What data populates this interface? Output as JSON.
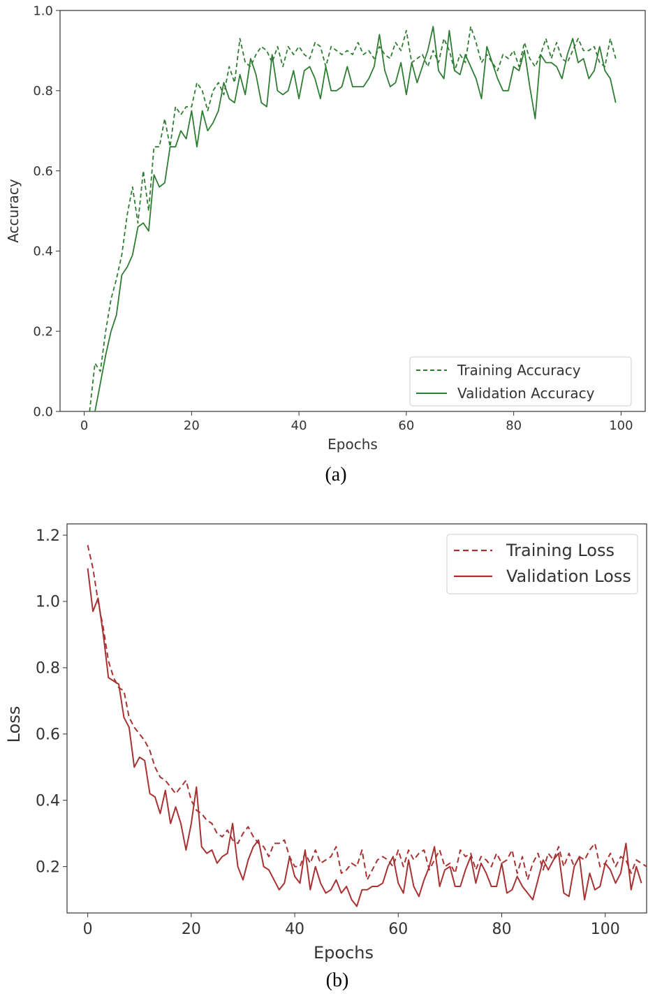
{
  "chart_data": [
    {
      "type": "line",
      "caption": "(a)",
      "xlabel": "Epochs",
      "ylabel": "Accuracy",
      "xlim": [
        -4.5,
        104.5
      ],
      "ylim": [
        0.0,
        1.0
      ],
      "xticks": [
        "0",
        "20",
        "40",
        "60",
        "80",
        "100"
      ],
      "yticks": [
        "0.0",
        "0.2",
        "0.4",
        "0.6",
        "0.8",
        "1.0"
      ],
      "grid": false,
      "legend_position": "lower-right",
      "color": "#2e7d32",
      "series": [
        {
          "name": "Training Accuracy",
          "style": "dashed",
          "x_start": 1,
          "values": [
            0.0,
            0.12,
            0.1,
            0.2,
            0.28,
            0.33,
            0.39,
            0.49,
            0.56,
            0.47,
            0.6,
            0.5,
            0.66,
            0.66,
            0.73,
            0.66,
            0.76,
            0.74,
            0.76,
            0.76,
            0.82,
            0.8,
            0.75,
            0.8,
            0.82,
            0.79,
            0.86,
            0.82,
            0.93,
            0.87,
            0.86,
            0.89,
            0.91,
            0.9,
            0.87,
            0.91,
            0.86,
            0.91,
            0.89,
            0.91,
            0.89,
            0.88,
            0.92,
            0.91,
            0.86,
            0.91,
            0.9,
            0.89,
            0.9,
            0.89,
            0.92,
            0.89,
            0.9,
            0.88,
            0.91,
            0.89,
            0.88,
            0.92,
            0.9,
            0.95,
            0.87,
            0.88,
            0.89,
            0.86,
            0.9,
            0.87,
            0.93,
            0.9,
            0.85,
            0.89,
            0.87,
            0.96,
            0.92,
            0.87,
            0.89,
            0.87,
            0.85,
            0.89,
            0.88,
            0.9,
            0.86,
            0.92,
            0.88,
            0.86,
            0.89,
            0.93,
            0.88,
            0.92,
            0.88,
            0.87,
            0.9,
            0.93,
            0.9,
            0.9,
            0.91,
            0.87,
            0.86,
            0.93,
            0.88
          ]
        },
        {
          "name": "Validation Accuracy",
          "style": "solid",
          "x_start": 2,
          "values": [
            0.0,
            0.07,
            0.14,
            0.2,
            0.24,
            0.34,
            0.36,
            0.39,
            0.46,
            0.47,
            0.45,
            0.59,
            0.56,
            0.57,
            0.66,
            0.66,
            0.7,
            0.68,
            0.75,
            0.66,
            0.75,
            0.7,
            0.72,
            0.75,
            0.82,
            0.78,
            0.77,
            0.84,
            0.79,
            0.88,
            0.84,
            0.77,
            0.76,
            0.89,
            0.8,
            0.79,
            0.8,
            0.85,
            0.78,
            0.85,
            0.86,
            0.83,
            0.78,
            0.86,
            0.8,
            0.8,
            0.81,
            0.86,
            0.81,
            0.81,
            0.81,
            0.83,
            0.86,
            0.94,
            0.85,
            0.81,
            0.82,
            0.87,
            0.79,
            0.87,
            0.82,
            0.86,
            0.9,
            0.96,
            0.85,
            0.83,
            0.95,
            0.85,
            0.84,
            0.89,
            0.86,
            0.83,
            0.78,
            0.91,
            0.87,
            0.83,
            0.8,
            0.8,
            0.86,
            0.85,
            0.9,
            0.81,
            0.73,
            0.89,
            0.87,
            0.87,
            0.86,
            0.83,
            0.89,
            0.93,
            0.87,
            0.88,
            0.83,
            0.85,
            0.91,
            0.85,
            0.83,
            0.77
          ]
        }
      ]
    },
    {
      "type": "line",
      "caption": "(b)",
      "xlabel": "Epochs",
      "ylabel": "Loss",
      "xlim": [
        -4,
        108
      ],
      "ylim": [
        0.06,
        1.234
      ],
      "xticks": [
        "0",
        "20",
        "40",
        "60",
        "80",
        "100"
      ],
      "yticks": [
        "0.2",
        "0.4",
        "0.6",
        "0.8",
        "1.0",
        "1.2"
      ],
      "grid": false,
      "legend_position": "upper-right",
      "color": "#a83232",
      "series": [
        {
          "name": "Training Loss",
          "style": "dashed",
          "x_start": 0,
          "values": [
            1.17,
            1.1,
            1.0,
            0.92,
            0.82,
            0.77,
            0.74,
            0.73,
            0.65,
            0.62,
            0.6,
            0.58,
            0.55,
            0.5,
            0.47,
            0.46,
            0.44,
            0.42,
            0.44,
            0.46,
            0.4,
            0.37,
            0.36,
            0.34,
            0.33,
            0.3,
            0.29,
            0.31,
            0.28,
            0.27,
            0.3,
            0.32,
            0.29,
            0.27,
            0.26,
            0.23,
            0.27,
            0.27,
            0.28,
            0.23,
            0.2,
            0.2,
            0.24,
            0.21,
            0.25,
            0.21,
            0.22,
            0.23,
            0.26,
            0.18,
            0.19,
            0.21,
            0.2,
            0.25,
            0.16,
            0.19,
            0.22,
            0.23,
            0.22,
            0.2,
            0.25,
            0.2,
            0.25,
            0.22,
            0.24,
            0.25,
            0.19,
            0.22,
            0.25,
            0.2,
            0.21,
            0.18,
            0.25,
            0.23,
            0.24,
            0.19,
            0.23,
            0.22,
            0.2,
            0.24,
            0.21,
            0.22,
            0.25,
            0.18,
            0.23,
            0.16,
            0.21,
            0.24,
            0.19,
            0.24,
            0.22,
            0.26,
            0.2,
            0.24,
            0.2,
            0.23,
            0.22,
            0.25,
            0.27,
            0.2,
            0.21,
            0.24,
            0.2,
            0.23,
            0.22,
            0.18,
            0.22,
            0.21,
            0.2
          ]
        },
        {
          "name": "Validation Loss",
          "style": "solid",
          "x_start": 0,
          "values": [
            1.1,
            0.97,
            1.01,
            0.9,
            0.77,
            0.76,
            0.75,
            0.65,
            0.62,
            0.5,
            0.53,
            0.52,
            0.42,
            0.41,
            0.36,
            0.43,
            0.33,
            0.38,
            0.33,
            0.25,
            0.33,
            0.44,
            0.26,
            0.24,
            0.25,
            0.21,
            0.23,
            0.24,
            0.33,
            0.2,
            0.16,
            0.22,
            0.26,
            0.28,
            0.2,
            0.19,
            0.16,
            0.13,
            0.15,
            0.23,
            0.17,
            0.15,
            0.25,
            0.13,
            0.2,
            0.15,
            0.12,
            0.13,
            0.16,
            0.12,
            0.14,
            0.1,
            0.08,
            0.13,
            0.13,
            0.14,
            0.14,
            0.15,
            0.2,
            0.23,
            0.15,
            0.12,
            0.22,
            0.14,
            0.11,
            0.16,
            0.2,
            0.26,
            0.14,
            0.19,
            0.2,
            0.14,
            0.14,
            0.19,
            0.23,
            0.15,
            0.21,
            0.18,
            0.14,
            0.14,
            0.21,
            0.12,
            0.13,
            0.17,
            0.14,
            0.12,
            0.1,
            0.16,
            0.22,
            0.19,
            0.22,
            0.24,
            0.12,
            0.11,
            0.2,
            0.23,
            0.1,
            0.18,
            0.13,
            0.14,
            0.21,
            0.19,
            0.15,
            0.18,
            0.27,
            0.13,
            0.2,
            0.15
          ]
        }
      ]
    }
  ]
}
